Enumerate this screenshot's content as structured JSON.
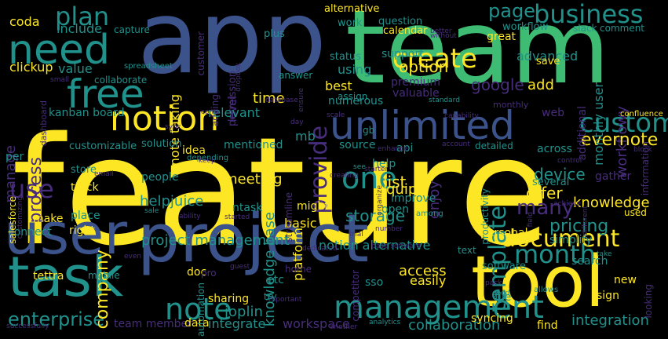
{
  "colors": {
    "background": "#000000",
    "yellow": "#fde725",
    "green": "#3fbc73",
    "teal": "#21918c",
    "blue": "#3b528b",
    "purple": "#472d7b",
    "lightgreen": "#6ece58",
    "aqua": "#2a788e",
    "deep": "#440154"
  },
  "words": [
    {
      "text": "feature",
      "color": "yellow"
    },
    {
      "text": "app",
      "color": "blue"
    },
    {
      "text": "team",
      "color": "green"
    },
    {
      "text": "project",
      "color": "blue"
    },
    {
      "text": "tool",
      "color": "yellow"
    },
    {
      "text": "task",
      "color": "teal"
    },
    {
      "text": "user",
      "color": "blue"
    },
    {
      "text": "unlimited",
      "color": "blue"
    },
    {
      "text": "need",
      "color": "teal"
    },
    {
      "text": "free",
      "color": "teal"
    },
    {
      "text": "notion",
      "color": "yellow"
    },
    {
      "text": "management",
      "color": "teal"
    },
    {
      "text": "create",
      "color": "yellow"
    },
    {
      "text": "custom",
      "color": "teal"
    },
    {
      "text": "business",
      "color": "teal"
    },
    {
      "text": "month",
      "color": "teal"
    },
    {
      "text": "document",
      "color": "yellow"
    },
    {
      "text": "note",
      "color": "teal"
    },
    {
      "text": "one",
      "color": "teal"
    },
    {
      "text": "plan",
      "color": "teal"
    },
    {
      "text": "provide",
      "color": "purple"
    },
    {
      "text": "use",
      "color": "purple"
    },
    {
      "text": "enterprise",
      "color": "teal"
    },
    {
      "text": "template",
      "color": "teal"
    },
    {
      "text": "company",
      "color": "yellow"
    },
    {
      "text": "manage",
      "color": "purple"
    },
    {
      "text": "process",
      "color": "purple"
    },
    {
      "text": "page",
      "color": "teal"
    },
    {
      "text": "many",
      "color": "purple"
    },
    {
      "text": "workflowy",
      "color": "purple"
    },
    {
      "text": "project management",
      "color": "teal"
    },
    {
      "text": "knowledge base",
      "color": "teal"
    },
    {
      "text": "evernote",
      "color": "yellow"
    },
    {
      "text": "integration",
      "color": "teal"
    },
    {
      "text": "pricing",
      "color": "teal"
    },
    {
      "text": "device",
      "color": "teal"
    },
    {
      "text": "offer",
      "color": "yellow"
    },
    {
      "text": "knowledge",
      "color": "yellow"
    },
    {
      "text": "list",
      "color": "yellow"
    },
    {
      "text": "quip",
      "color": "yellow"
    },
    {
      "text": "storage",
      "color": "teal"
    },
    {
      "text": "google",
      "color": "purple"
    },
    {
      "text": "option",
      "color": "yellow"
    },
    {
      "text": "add",
      "color": "yellow"
    },
    {
      "text": "collaboration",
      "color": "teal"
    },
    {
      "text": "joplin",
      "color": "teal"
    },
    {
      "text": "integrate",
      "color": "teal"
    },
    {
      "text": "workspace",
      "color": "purple"
    },
    {
      "text": "access",
      "color": "yellow"
    },
    {
      "text": "easily",
      "color": "yellow"
    },
    {
      "text": "enjoy",
      "color": "purple"
    },
    {
      "text": "helpjuice",
      "color": "teal"
    },
    {
      "text": "monthly user",
      "color": "teal"
    },
    {
      "text": "advanced",
      "color": "teal"
    },
    {
      "text": "meeting",
      "color": "yellow"
    },
    {
      "text": "kanban board",
      "color": "teal"
    },
    {
      "text": "include",
      "color": "teal"
    },
    {
      "text": "value",
      "color": "teal"
    },
    {
      "text": "clickup",
      "color": "yellow"
    },
    {
      "text": "coda",
      "color": "yellow"
    },
    {
      "text": "capture",
      "color": "teal"
    },
    {
      "text": "customer",
      "color": "purple"
    },
    {
      "text": "note taking",
      "color": "yellow"
    },
    {
      "text": "permission",
      "color": "purple"
    },
    {
      "text": "level",
      "color": "purple"
    },
    {
      "text": "adding",
      "color": "purple"
    },
    {
      "text": "collaborate",
      "color": "teal"
    },
    {
      "text": "relevant",
      "color": "teal"
    },
    {
      "text": "time",
      "color": "yellow"
    },
    {
      "text": "mb",
      "color": "teal"
    },
    {
      "text": "premium",
      "color": "purple"
    },
    {
      "text": "valuable",
      "color": "purple"
    },
    {
      "text": "best",
      "color": "yellow"
    },
    {
      "text": "using",
      "color": "teal"
    },
    {
      "text": "support",
      "color": "teal"
    },
    {
      "text": "status",
      "color": "teal"
    },
    {
      "text": "answer",
      "color": "teal"
    },
    {
      "text": "plus",
      "color": "teal"
    },
    {
      "text": "question",
      "color": "teal"
    },
    {
      "text": "work",
      "color": "teal"
    },
    {
      "text": "alternative",
      "color": "yellow"
    },
    {
      "text": "calendar",
      "color": "yellow"
    },
    {
      "text": "great",
      "color": "yellow"
    },
    {
      "text": "workflow",
      "color": "teal"
    },
    {
      "text": "slack",
      "color": "teal"
    },
    {
      "text": "comment",
      "color": "teal"
    },
    {
      "text": "save",
      "color": "yellow"
    },
    {
      "text": "additional",
      "color": "purple"
    },
    {
      "text": "web",
      "color": "purple"
    },
    {
      "text": "confluence",
      "color": "yellow"
    },
    {
      "text": "solution",
      "color": "teal"
    },
    {
      "text": "customizable",
      "color": "teal"
    },
    {
      "text": "idea",
      "color": "yellow"
    },
    {
      "text": "mentioned",
      "color": "teal"
    },
    {
      "text": "source",
      "color": "teal"
    },
    {
      "text": "api",
      "color": "teal"
    },
    {
      "text": "detailed",
      "color": "teal"
    },
    {
      "text": "across",
      "color": "teal"
    },
    {
      "text": "help",
      "color": "teal"
    },
    {
      "text": "several",
      "color": "teal"
    },
    {
      "text": "gather",
      "color": "purple"
    },
    {
      "text": "information",
      "color": "purple"
    },
    {
      "text": "used",
      "color": "yellow"
    },
    {
      "text": "people",
      "color": "teal"
    },
    {
      "text": "track",
      "color": "yellow"
    },
    {
      "text": "store",
      "color": "teal"
    },
    {
      "text": "make",
      "color": "yellow"
    },
    {
      "text": "place",
      "color": "teal"
    },
    {
      "text": "right",
      "color": "yellow"
    },
    {
      "text": "connect",
      "color": "teal"
    },
    {
      "text": "salesforce",
      "color": "yellow"
    },
    {
      "text": "per",
      "color": "teal"
    },
    {
      "text": "ntask",
      "color": "teal"
    },
    {
      "text": "might",
      "color": "yellow"
    },
    {
      "text": "basic",
      "color": "yellow"
    },
    {
      "text": "platform",
      "color": "yellow"
    },
    {
      "text": "open",
      "color": "teal"
    },
    {
      "text": "improve",
      "color": "teal"
    },
    {
      "text": "notion alternative",
      "color": "teal"
    },
    {
      "text": "personal",
      "color": "yellow"
    },
    {
      "text": "simplify",
      "color": "teal"
    },
    {
      "text": "search",
      "color": "teal"
    },
    {
      "text": "productivity",
      "color": "teal"
    },
    {
      "text": "software",
      "color": "teal"
    },
    {
      "text": "looking",
      "color": "purple"
    },
    {
      "text": "new",
      "color": "yellow"
    },
    {
      "text": "sign",
      "color": "yellow"
    },
    {
      "text": "file",
      "color": "teal"
    },
    {
      "text": "syncing",
      "color": "yellow"
    },
    {
      "text": "find",
      "color": "yellow"
    },
    {
      "text": "team member",
      "color": "purple"
    },
    {
      "text": "data",
      "color": "yellow"
    },
    {
      "text": "sharing",
      "color": "yellow"
    },
    {
      "text": "automation",
      "color": "teal"
    },
    {
      "text": "doc",
      "color": "yellow"
    },
    {
      "text": "pro",
      "color": "purple"
    },
    {
      "text": "etc",
      "color": "teal"
    },
    {
      "text": "home",
      "color": "purple"
    },
    {
      "text": "try",
      "color": "teal"
    },
    {
      "text": "sso",
      "color": "teal"
    },
    {
      "text": "competitor",
      "color": "purple"
    },
    {
      "text": "tettra",
      "color": "yellow"
    },
    {
      "text": "mobile",
      "color": "teal"
    },
    {
      "text": "text",
      "color": "teal"
    },
    {
      "text": "streamline",
      "color": "purple"
    },
    {
      "text": "numerous",
      "color": "teal"
    },
    {
      "text": "assign",
      "color": "teal"
    },
    {
      "text": "gb",
      "color": "teal"
    },
    {
      "text": "spreadsheet",
      "color": "teal"
    },
    {
      "text": "dashboard",
      "color": "purple"
    },
    {
      "text": "sync",
      "color": "purple"
    },
    {
      "text": "email",
      "color": "purple"
    },
    {
      "text": "depending",
      "color": "teal"
    },
    {
      "text": "customizing",
      "color": "purple"
    },
    {
      "text": "successfully",
      "color": "purple"
    },
    {
      "text": "another",
      "color": "purple"
    },
    {
      "text": "important",
      "color": "purple"
    },
    {
      "text": "analytics",
      "color": "teal"
    },
    {
      "text": "guest",
      "color": "purple"
    },
    {
      "text": "even",
      "color": "purple"
    },
    {
      "text": "dedicated",
      "color": "purple"
    },
    {
      "text": "trial",
      "color": "purple"
    },
    {
      "text": "base software",
      "color": "purple"
    },
    {
      "text": "number",
      "color": "purple"
    },
    {
      "text": "among",
      "color": "teal"
    },
    {
      "text": "allows",
      "color": "teal"
    },
    {
      "text": "good",
      "color": "teal"
    },
    {
      "text": "pack",
      "color": "purple"
    },
    {
      "text": "take",
      "color": "teal"
    },
    {
      "text": "field",
      "color": "purple"
    },
    {
      "text": "different",
      "color": "purple"
    },
    {
      "text": "achieve",
      "color": "purple"
    },
    {
      "text": "control",
      "color": "purple"
    },
    {
      "text": "block",
      "color": "purple"
    },
    {
      "text": "account",
      "color": "purple"
    },
    {
      "text": "enhance",
      "color": "purple"
    },
    {
      "text": "starter",
      "color": "purple"
    },
    {
      "text": "see",
      "color": "teal"
    },
    {
      "text": "organize",
      "color": "purple"
    },
    {
      "text": "capability",
      "color": "purple"
    },
    {
      "text": "scale",
      "color": "purple"
    },
    {
      "text": "day",
      "color": "purple"
    },
    {
      "text": "standard",
      "color": "teal"
    },
    {
      "text": "database",
      "color": "purple"
    },
    {
      "text": "ensure",
      "color": "purple"
    },
    {
      "text": "creating",
      "color": "purple"
    },
    {
      "text": "keep",
      "color": "purple"
    },
    {
      "text": "ability",
      "color": "purple"
    },
    {
      "text": "started",
      "color": "purple"
    },
    {
      "text": "sale",
      "color": "teal"
    },
    {
      "text": "come",
      "color": "purple"
    },
    {
      "text": "without",
      "color": "purple"
    },
    {
      "text": "better",
      "color": "purple"
    },
    {
      "text": "dropbox",
      "color": "purple"
    },
    {
      "text": "small",
      "color": "purple"
    },
    {
      "text": "monthly",
      "color": "purple"
    }
  ]
}
